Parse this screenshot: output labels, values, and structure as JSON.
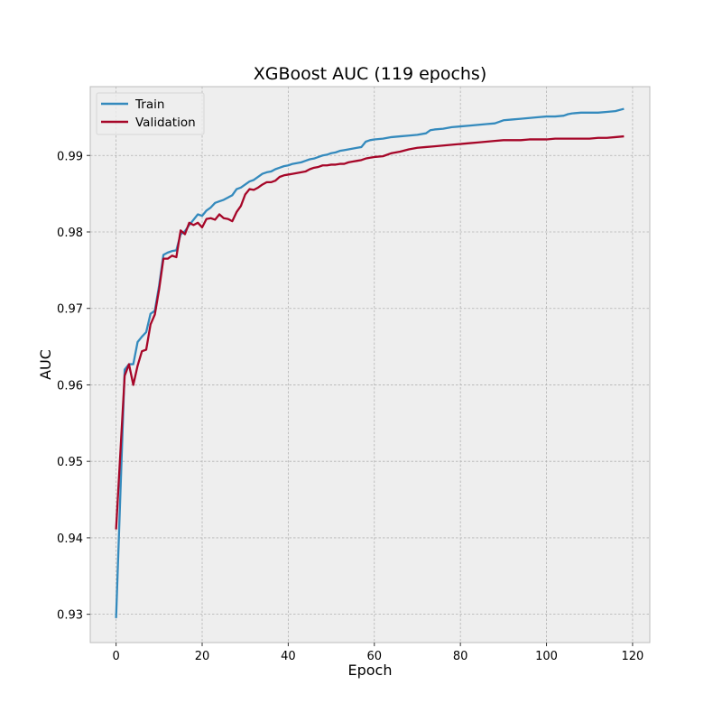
{
  "chart_data": {
    "type": "line",
    "title": "XGBoost AUC (119 epochs)",
    "xlabel": "Epoch",
    "ylabel": "AUC",
    "xlim": [
      -6,
      124
    ],
    "ylim": [
      0.9263,
      0.999
    ],
    "xticks": [
      0,
      20,
      40,
      60,
      80,
      100,
      120
    ],
    "yticks": [
      0.93,
      0.94,
      0.95,
      0.96,
      0.97,
      0.98,
      0.99
    ],
    "ytick_labels": [
      "0.93",
      "0.94",
      "0.95",
      "0.96",
      "0.97",
      "0.98",
      "0.99"
    ],
    "grid": true,
    "legend": "top-left",
    "background": "#EEEEEE",
    "series": [
      {
        "name": "Train",
        "color": "#348ABD",
        "x": [
          0,
          2,
          3,
          4,
          5,
          6,
          7,
          8,
          9,
          10,
          11,
          12,
          13,
          14,
          15,
          16,
          17,
          18,
          19,
          20,
          21,
          22,
          23,
          24,
          25,
          26,
          27,
          28,
          29,
          30,
          31,
          32,
          33,
          34,
          35,
          36,
          37,
          38,
          39,
          40,
          41,
          42,
          43,
          44,
          45,
          46,
          47,
          48,
          49,
          50,
          51,
          52,
          53,
          54,
          55,
          56,
          57,
          58,
          59,
          60,
          62,
          64,
          66,
          68,
          70,
          72,
          73,
          74,
          76,
          78,
          80,
          82,
          84,
          86,
          88,
          90,
          92,
          94,
          96,
          98,
          100,
          102,
          104,
          105,
          106,
          108,
          110,
          112,
          114,
          116,
          118
        ],
        "y": [
          0.9295,
          0.962,
          0.9627,
          0.9627,
          0.9656,
          0.9663,
          0.9669,
          0.9693,
          0.9697,
          0.973,
          0.977,
          0.9773,
          0.9775,
          0.9776,
          0.9797,
          0.9801,
          0.9809,
          0.9816,
          0.9823,
          0.9821,
          0.9828,
          0.9832,
          0.9838,
          0.984,
          0.9842,
          0.9845,
          0.9848,
          0.9856,
          0.9858,
          0.9862,
          0.9866,
          0.9868,
          0.9872,
          0.9876,
          0.9878,
          0.9879,
          0.9882,
          0.9884,
          0.9886,
          0.9887,
          0.9889,
          0.989,
          0.9891,
          0.9893,
          0.9895,
          0.9896,
          0.9898,
          0.99,
          0.9901,
          0.9903,
          0.9904,
          0.9906,
          0.9907,
          0.9908,
          0.9909,
          0.991,
          0.9911,
          0.9918,
          0.992,
          0.9921,
          0.9922,
          0.9924,
          0.9925,
          0.9926,
          0.9927,
          0.9929,
          0.9933,
          0.9934,
          0.9935,
          0.9937,
          0.9938,
          0.9939,
          0.994,
          0.9941,
          0.9942,
          0.9946,
          0.9947,
          0.9948,
          0.9949,
          0.995,
          0.9951,
          0.9951,
          0.9952,
          0.9954,
          0.9955,
          0.9956,
          0.9956,
          0.9956,
          0.9957,
          0.9958,
          0.9961
        ]
      },
      {
        "name": "Validation",
        "color": "#A60628",
        "x": [
          0,
          2,
          3,
          4,
          5,
          6,
          7,
          8,
          9,
          10,
          11,
          12,
          13,
          14,
          15,
          16,
          17,
          18,
          19,
          20,
          21,
          22,
          23,
          24,
          25,
          26,
          27,
          28,
          29,
          30,
          31,
          32,
          33,
          34,
          35,
          36,
          37,
          38,
          39,
          40,
          41,
          42,
          43,
          44,
          45,
          46,
          47,
          48,
          49,
          50,
          51,
          52,
          53,
          54,
          55,
          56,
          57,
          58,
          59,
          60,
          62,
          64,
          66,
          68,
          70,
          72,
          74,
          76,
          78,
          80,
          82,
          84,
          86,
          88,
          90,
          92,
          94,
          96,
          98,
          100,
          102,
          104,
          106,
          108,
          110,
          112,
          114,
          116,
          118
        ],
        "y": [
          0.9411,
          0.9612,
          0.9627,
          0.96,
          0.9625,
          0.9644,
          0.9646,
          0.9679,
          0.9692,
          0.9725,
          0.9765,
          0.9765,
          0.9769,
          0.9767,
          0.9802,
          0.9797,
          0.9812,
          0.9809,
          0.9812,
          0.9806,
          0.9817,
          0.9818,
          0.9816,
          0.9823,
          0.9818,
          0.9817,
          0.9814,
          0.9826,
          0.9834,
          0.9849,
          0.9856,
          0.9855,
          0.9858,
          0.9862,
          0.9865,
          0.9865,
          0.9867,
          0.9872,
          0.9874,
          0.9875,
          0.9876,
          0.9877,
          0.9878,
          0.9879,
          0.9882,
          0.9884,
          0.9885,
          0.9887,
          0.9887,
          0.9888,
          0.9888,
          0.9889,
          0.9889,
          0.9891,
          0.9892,
          0.9893,
          0.9894,
          0.9896,
          0.9897,
          0.9898,
          0.9899,
          0.9903,
          0.9905,
          0.9908,
          0.991,
          0.9911,
          0.9912,
          0.9913,
          0.9914,
          0.9915,
          0.9916,
          0.9917,
          0.9918,
          0.9919,
          0.992,
          0.992,
          0.992,
          0.9921,
          0.9921,
          0.9921,
          0.9922,
          0.9922,
          0.9922,
          0.9922,
          0.9922,
          0.9923,
          0.9923,
          0.9924,
          0.9925
        ]
      }
    ]
  }
}
